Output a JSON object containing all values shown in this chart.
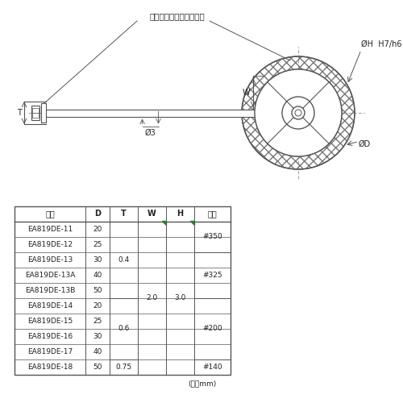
{
  "background_color": "#ffffff",
  "diagram_label": "ダイヤモンドプレート部",
  "phi_h_label": "ØH  H7/h6",
  "phi_3_label": "Ø3",
  "phi_d_label": "ØD",
  "w_label": "W",
  "t_label": "T",
  "unit_label": "(単位mm)",
  "table_headers": [
    "品番",
    "D",
    "T",
    "W",
    "H",
    "粒度"
  ],
  "line_color": "#555555",
  "text_color": "#222222",
  "green_dot_color": "#2a7a2a",
  "t_spans": [
    [
      0,
      4,
      "0.4"
    ],
    [
      5,
      8,
      "0.6"
    ],
    [
      9,
      9,
      "0.75"
    ]
  ],
  "grade_spans": [
    [
      0,
      1,
      "#350"
    ],
    [
      2,
      4,
      "#325"
    ],
    [
      5,
      8,
      "#200"
    ],
    [
      9,
      9,
      "#140"
    ]
  ],
  "table_rows": [
    [
      "EA819DE-11",
      "20"
    ],
    [
      "EA819DE-12",
      "25"
    ],
    [
      "EA819DE-13",
      "30"
    ],
    [
      "EA819DE-13A",
      "40"
    ],
    [
      "EA819DE-13B",
      "50"
    ],
    [
      "EA819DE-14",
      "20"
    ],
    [
      "EA819DE-15",
      "25"
    ],
    [
      "EA819DE-16",
      "30"
    ],
    [
      "EA819DE-17",
      "40"
    ],
    [
      "EA819DE-18",
      "50"
    ]
  ],
  "w_value": "2.0",
  "h_value": "3.0"
}
